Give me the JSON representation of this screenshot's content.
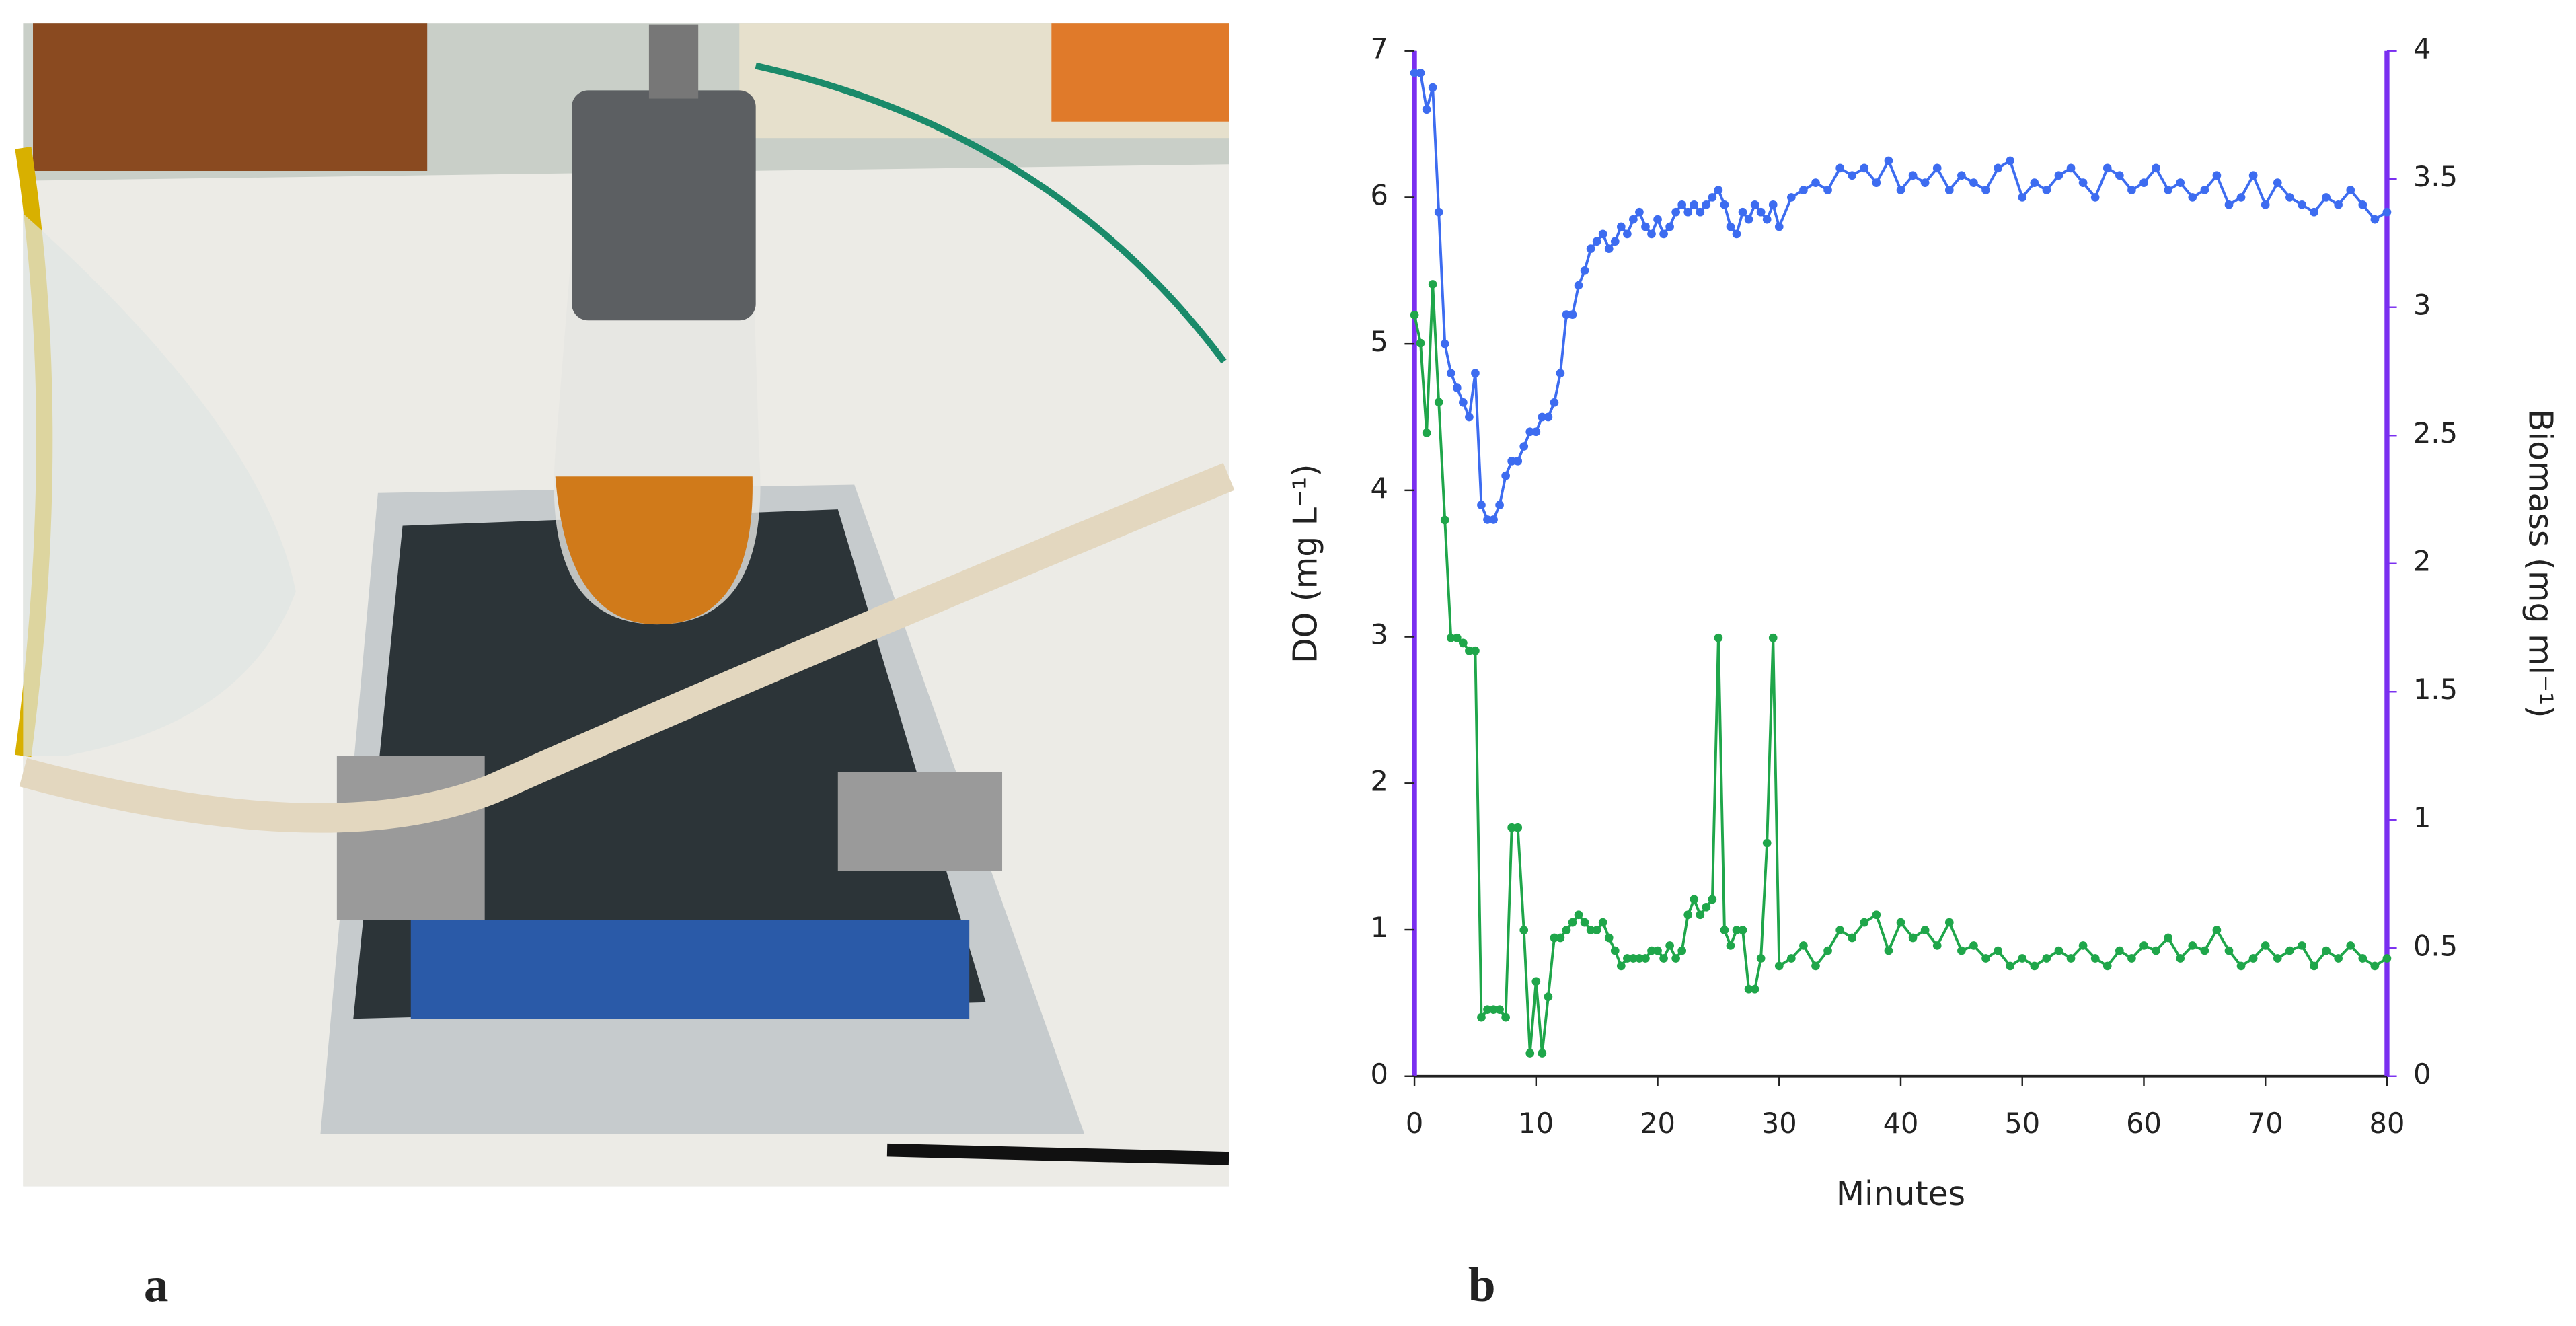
{
  "panels": [
    "a",
    "b"
  ],
  "chart_data": {
    "type": "line",
    "xlabel": "Minutes",
    "ylabel": "DO (mg L⁻¹)",
    "y2label": "Biomass (mg ml⁻¹)",
    "x": [
      0,
      0.5,
      1,
      1.5,
      2,
      2.5,
      3,
      3.5,
      4,
      4.5,
      5,
      5.5,
      6,
      6.5,
      7,
      7.5,
      8,
      8.5,
      9,
      9.5,
      10,
      10.5,
      11,
      11.5,
      12,
      12.5,
      13,
      13.5,
      14,
      14.5,
      15,
      15.5,
      16,
      16.5,
      17,
      17.5,
      18,
      18.5,
      19,
      19.5,
      20,
      20.5,
      21,
      21.5,
      22,
      22.5,
      23,
      23.5,
      24,
      24.5,
      25,
      25.5,
      26,
      26.5,
      27,
      27.5,
      28,
      28.5,
      29,
      29.5,
      30,
      31,
      32,
      33,
      34,
      35,
      36,
      37,
      38,
      39,
      40,
      41,
      42,
      43,
      44,
      45,
      46,
      47,
      48,
      49,
      50,
      51,
      52,
      53,
      54,
      55,
      56,
      57,
      58,
      59,
      60,
      61,
      62,
      63,
      64,
      65,
      66,
      67,
      68,
      69,
      70,
      71,
      72,
      73,
      74,
      75,
      76,
      77,
      78,
      79,
      80
    ],
    "series": [
      {
        "name": "DO",
        "color": "#3d6cf0",
        "axis": "y",
        "values": [
          6.85,
          6.85,
          6.6,
          6.75,
          5.9,
          5.0,
          4.8,
          4.7,
          4.6,
          4.5,
          4.8,
          3.9,
          3.8,
          3.8,
          3.9,
          4.1,
          4.2,
          4.2,
          4.3,
          4.4,
          4.4,
          4.5,
          4.5,
          4.6,
          4.8,
          5.2,
          5.2,
          5.4,
          5.5,
          5.65,
          5.7,
          5.75,
          5.65,
          5.7,
          5.8,
          5.75,
          5.85,
          5.9,
          5.8,
          5.75,
          5.85,
          5.75,
          5.8,
          5.9,
          5.95,
          5.9,
          5.95,
          5.9,
          5.95,
          6.0,
          6.05,
          5.95,
          5.8,
          5.75,
          5.9,
          5.85,
          5.95,
          5.9,
          5.85,
          5.95,
          5.8,
          6.0,
          6.05,
          6.1,
          6.05,
          6.2,
          6.15,
          6.2,
          6.1,
          6.25,
          6.05,
          6.15,
          6.1,
          6.2,
          6.05,
          6.15,
          6.1,
          6.05,
          6.2,
          6.25,
          6.0,
          6.1,
          6.05,
          6.15,
          6.2,
          6.1,
          6.0,
          6.2,
          6.15,
          6.05,
          6.1,
          6.2,
          6.05,
          6.1,
          6.0,
          6.05,
          6.15,
          5.95,
          6.0,
          6.15,
          5.95,
          6.1,
          6.0,
          5.95,
          5.9,
          6.0,
          5.95,
          6.05,
          5.95,
          5.85,
          5.9
        ]
      },
      {
        "name": "Biomass",
        "color": "#1fa64a",
        "axis": "y2",
        "values": [
          2.97,
          2.86,
          2.51,
          3.09,
          2.63,
          2.17,
          1.71,
          1.71,
          1.69,
          1.66,
          1.66,
          0.23,
          0.26,
          0.26,
          0.26,
          0.23,
          0.97,
          0.97,
          0.57,
          0.09,
          0.37,
          0.09,
          0.31,
          0.54,
          0.54,
          0.57,
          0.6,
          0.63,
          0.6,
          0.57,
          0.57,
          0.6,
          0.54,
          0.49,
          0.43,
          0.46,
          0.46,
          0.46,
          0.46,
          0.49,
          0.49,
          0.46,
          0.51,
          0.46,
          0.49,
          0.63,
          0.69,
          0.63,
          0.66,
          0.69,
          1.71,
          0.57,
          0.51,
          0.57,
          0.57,
          0.34,
          0.34,
          0.46,
          0.91,
          1.71,
          0.43,
          0.46,
          0.51,
          0.43,
          0.49,
          0.57,
          0.54,
          0.6,
          0.63,
          0.49,
          0.6,
          0.54,
          0.57,
          0.51,
          0.6,
          0.49,
          0.51,
          0.46,
          0.49,
          0.43,
          0.46,
          0.43,
          0.46,
          0.49,
          0.46,
          0.51,
          0.46,
          0.43,
          0.49,
          0.46,
          0.51,
          0.49,
          0.54,
          0.46,
          0.51,
          0.49,
          0.57,
          0.49,
          0.43,
          0.46,
          0.51,
          0.46,
          0.49,
          0.51,
          0.43,
          0.49,
          0.46,
          0.51,
          0.46,
          0.43,
          0.46
        ]
      }
    ],
    "xlim": [
      0,
      80
    ],
    "xticks": [
      0,
      10,
      20,
      30,
      40,
      50,
      60,
      70,
      80
    ],
    "ylim": [
      0,
      7
    ],
    "yticks": [
      0,
      1,
      2,
      3,
      4,
      5,
      6,
      7
    ],
    "y2lim": [
      0,
      4
    ],
    "y2ticks": [
      0,
      0.5,
      1,
      1.5,
      2,
      2.5,
      3,
      3.5,
      4
    ],
    "y2_axis_color": "#7a2ff0"
  }
}
